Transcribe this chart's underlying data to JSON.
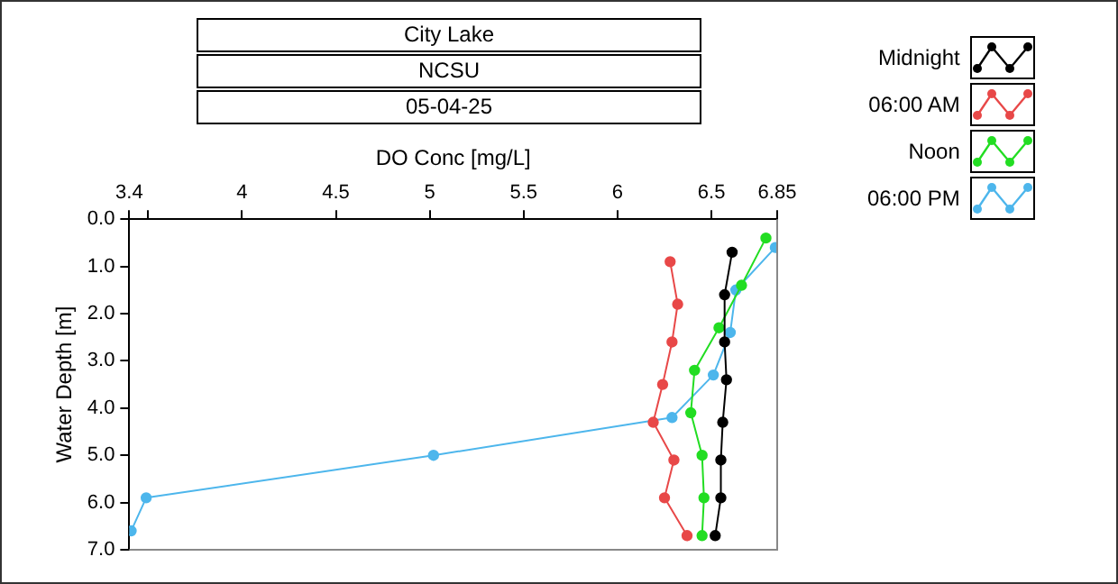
{
  "chart_data": {
    "type": "line",
    "title": "City Lake",
    "subtitle": "NCSU",
    "annotations": [
      "05-04-25"
    ],
    "xlabel": "DO Conc [mg/L]",
    "ylabel": "Water Depth [m]",
    "xlim": [
      3.4,
      6.85
    ],
    "xticks": [
      3.4,
      {
        "value": 3.5,
        "label": null
      },
      4,
      4.5,
      5,
      5.5,
      6,
      6.5,
      6.85
    ],
    "ylim": [
      7,
      0
    ],
    "yticks": [
      {
        "value": 0,
        "label": "0.0"
      },
      {
        "value": 1,
        "label": "1.0"
      },
      {
        "value": 2,
        "label": "2.0"
      },
      {
        "value": 3,
        "label": "3.0"
      },
      {
        "value": 4,
        "label": "4.0"
      },
      {
        "value": 5,
        "label": "5.0"
      },
      {
        "value": 6,
        "label": "6.0"
      },
      {
        "value": 7,
        "label": "7.0"
      }
    ],
    "grid": false,
    "legend": "top right",
    "marker": "circle",
    "line_style": "solid",
    "series": [
      {
        "name": "Midnight",
        "color": "#000000",
        "x": [
          6.61,
          6.57,
          6.57,
          6.58,
          6.56,
          6.55,
          6.55,
          6.52
        ],
        "values": [
          0.7,
          1.6,
          2.6,
          3.4,
          4.3,
          5.1,
          5.9,
          6.7
        ]
      },
      {
        "name": "06:00 AM",
        "color": "#e84848",
        "x": [
          6.28,
          6.32,
          6.29,
          6.24,
          6.19,
          6.3,
          6.25,
          6.37
        ],
        "values": [
          0.9,
          1.8,
          2.6,
          3.5,
          4.3,
          5.1,
          5.9,
          6.7
        ]
      },
      {
        "name": "Noon",
        "color": "#22dd22",
        "x": [
          6.79,
          6.66,
          6.54,
          6.41,
          6.39,
          6.45,
          6.46,
          6.45
        ],
        "values": [
          0.4,
          1.4,
          2.3,
          3.2,
          4.1,
          5.0,
          5.9,
          6.7
        ]
      },
      {
        "name": "06:00 PM",
        "color": "#4db6ec",
        "x": [
          6.84,
          6.63,
          6.6,
          6.51,
          6.29,
          5.02,
          3.49,
          3.41
        ],
        "values": [
          0.6,
          1.5,
          2.4,
          3.3,
          4.2,
          5.0,
          5.9,
          6.6
        ]
      }
    ]
  }
}
